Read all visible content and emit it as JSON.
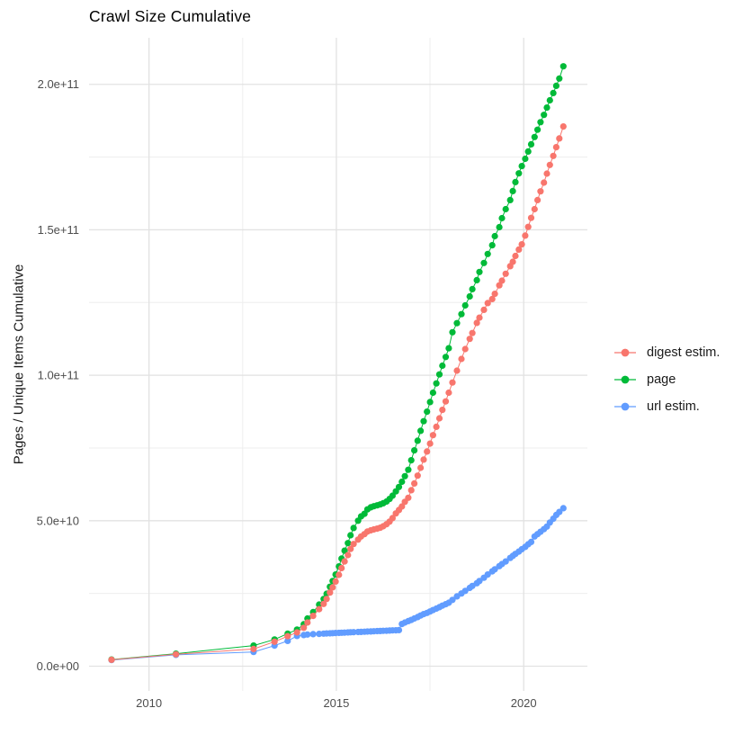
{
  "title": "Crawl Size Cumulative",
  "axes": {
    "y_label": "Pages / Unique Items Cumulative",
    "y_tick_labels": [
      "0.0e+00",
      "5.0e+10",
      "1.0e+11",
      "1.5e+11",
      "2.0e+11"
    ],
    "x_tick_labels": [
      "2010",
      "2015",
      "2020"
    ]
  },
  "legend": {
    "position": "right",
    "items": [
      {
        "label": "digest estim.",
        "color": "#F8766D"
      },
      {
        "label": "page",
        "color": "#00BA38"
      },
      {
        "label": "url estim.",
        "color": "#619CFF"
      }
    ]
  },
  "chart_data": {
    "type": "scatter",
    "title": "Crawl Size Cumulative",
    "xlabel": "",
    "ylabel": "Pages / Unique Items Cumulative",
    "grid": true,
    "legend_position": "right",
    "xlim": [
      2008.4,
      2021.7
    ],
    "ylim_e9": [
      -8.5,
      216
    ],
    "x_major_ticks": [
      {
        "label": "2010",
        "value": 2010
      },
      {
        "label": "2015",
        "value": 2015
      },
      {
        "label": "2020",
        "value": 2020
      }
    ],
    "x_minor_gridlines": [
      2012.5,
      2017.5
    ],
    "y_major_ticks": [
      {
        "label": "0.0e+00",
        "value_e9": 0
      },
      {
        "label": "5.0e+10",
        "value_e9": 50
      },
      {
        "label": "1.0e+11",
        "value_e9": 100
      },
      {
        "label": "1.5e+11",
        "value_e9": 150
      },
      {
        "label": "2.0e+11",
        "value_e9": 200
      }
    ],
    "y_minor_gridlines_e9": [
      25,
      75,
      125,
      175
    ],
    "y_unit": "1e9 (billions of pages / unique items)",
    "x_unit": "decimal year",
    "series": [
      {
        "name": "url estim.",
        "color": "#619CFF",
        "points": [
          [
            2009.0,
            2.1
          ],
          [
            2010.72,
            3.9
          ],
          [
            2012.79,
            4.9
          ],
          [
            2013.35,
            7.1
          ],
          [
            2013.7,
            8.7
          ],
          [
            2013.95,
            10.4
          ],
          [
            2014.13,
            10.7
          ],
          [
            2014.23,
            10.9
          ],
          [
            2014.38,
            11.0
          ],
          [
            2014.54,
            11.1
          ],
          [
            2014.66,
            11.2
          ],
          [
            2014.74,
            11.25
          ],
          [
            2014.83,
            11.3
          ],
          [
            2014.9,
            11.35
          ],
          [
            2014.98,
            11.4
          ],
          [
            2015.07,
            11.45
          ],
          [
            2015.14,
            11.5
          ],
          [
            2015.22,
            11.55
          ],
          [
            2015.31,
            11.6
          ],
          [
            2015.38,
            11.65
          ],
          [
            2015.46,
            11.7
          ],
          [
            2015.58,
            11.75
          ],
          [
            2015.66,
            11.8
          ],
          [
            2015.75,
            11.85
          ],
          [
            2015.83,
            11.9
          ],
          [
            2015.92,
            11.95
          ],
          [
            2016.0,
            12.0
          ],
          [
            2016.09,
            12.05
          ],
          [
            2016.17,
            12.1
          ],
          [
            2016.25,
            12.15
          ],
          [
            2016.34,
            12.2
          ],
          [
            2016.42,
            12.25
          ],
          [
            2016.5,
            12.3
          ],
          [
            2016.59,
            12.35
          ],
          [
            2016.67,
            12.4
          ],
          [
            2016.75,
            14.5
          ],
          [
            2016.83,
            15.0
          ],
          [
            2016.92,
            15.5
          ],
          [
            2017.0,
            15.9
          ],
          [
            2017.08,
            16.4
          ],
          [
            2017.17,
            16.9
          ],
          [
            2017.25,
            17.4
          ],
          [
            2017.33,
            17.9
          ],
          [
            2017.42,
            18.3
          ],
          [
            2017.5,
            18.8
          ],
          [
            2017.58,
            19.3
          ],
          [
            2017.67,
            19.8
          ],
          [
            2017.75,
            20.3
          ],
          [
            2017.83,
            20.8
          ],
          [
            2017.92,
            21.3
          ],
          [
            2018.0,
            21.8
          ],
          [
            2018.1,
            22.8
          ],
          [
            2018.22,
            24.0
          ],
          [
            2018.34,
            25.0
          ],
          [
            2018.44,
            25.9
          ],
          [
            2018.56,
            26.9
          ],
          [
            2018.63,
            27.6
          ],
          [
            2018.75,
            28.5
          ],
          [
            2018.82,
            29.3
          ],
          [
            2018.94,
            30.4
          ],
          [
            2019.04,
            31.5
          ],
          [
            2019.16,
            32.6
          ],
          [
            2019.23,
            33.3
          ],
          [
            2019.35,
            34.4
          ],
          [
            2019.42,
            35.1
          ],
          [
            2019.52,
            36.0
          ],
          [
            2019.64,
            37.2
          ],
          [
            2019.71,
            37.9
          ],
          [
            2019.78,
            38.6
          ],
          [
            2019.87,
            39.4
          ],
          [
            2019.95,
            40.2
          ],
          [
            2020.04,
            41.0
          ],
          [
            2020.12,
            41.9
          ],
          [
            2020.2,
            42.7
          ],
          [
            2020.29,
            44.6
          ],
          [
            2020.37,
            45.4
          ],
          [
            2020.45,
            46.2
          ],
          [
            2020.54,
            47.1
          ],
          [
            2020.62,
            48.0
          ],
          [
            2020.7,
            49.4
          ],
          [
            2020.79,
            50.7
          ],
          [
            2020.87,
            52.0
          ],
          [
            2020.95,
            53.0
          ],
          [
            2021.06,
            54.3
          ]
        ]
      },
      {
        "name": "page",
        "color": "#00BA38",
        "points": [
          [
            2009.0,
            2.3
          ],
          [
            2010.72,
            4.3
          ],
          [
            2012.79,
            7.1
          ],
          [
            2013.35,
            9.2
          ],
          [
            2013.7,
            11.2
          ],
          [
            2013.95,
            12.6
          ],
          [
            2014.13,
            14.4
          ],
          [
            2014.23,
            16.4
          ],
          [
            2014.38,
            18.6
          ],
          [
            2014.54,
            21.2
          ],
          [
            2014.66,
            23.1
          ],
          [
            2014.74,
            24.9
          ],
          [
            2014.83,
            27.3
          ],
          [
            2014.9,
            29.3
          ],
          [
            2014.98,
            31.5
          ],
          [
            2015.07,
            34.3
          ],
          [
            2015.14,
            37.0
          ],
          [
            2015.22,
            39.7
          ],
          [
            2015.31,
            42.3
          ],
          [
            2015.38,
            45.0
          ],
          [
            2015.46,
            47.5
          ],
          [
            2015.58,
            50.0
          ],
          [
            2015.66,
            51.5
          ],
          [
            2015.75,
            52.4
          ],
          [
            2015.83,
            53.9
          ],
          [
            2015.92,
            54.6
          ],
          [
            2016.0,
            55.0
          ],
          [
            2016.09,
            55.3
          ],
          [
            2016.17,
            55.6
          ],
          [
            2016.25,
            56.0
          ],
          [
            2016.34,
            56.6
          ],
          [
            2016.42,
            57.5
          ],
          [
            2016.5,
            58.6
          ],
          [
            2016.59,
            60.1
          ],
          [
            2016.67,
            61.6
          ],
          [
            2016.75,
            63.4
          ],
          [
            2016.83,
            65.3
          ],
          [
            2016.92,
            67.5
          ],
          [
            2017.0,
            70.8
          ],
          [
            2017.08,
            74.2
          ],
          [
            2017.17,
            77.5
          ],
          [
            2017.25,
            80.9
          ],
          [
            2017.33,
            84.2
          ],
          [
            2017.42,
            87.5
          ],
          [
            2017.5,
            90.8
          ],
          [
            2017.58,
            94.0
          ],
          [
            2017.67,
            97.2
          ],
          [
            2017.75,
            100.3
          ],
          [
            2017.83,
            103.3
          ],
          [
            2017.92,
            106.3
          ],
          [
            2018.0,
            109.3
          ],
          [
            2018.1,
            114.8
          ],
          [
            2018.22,
            117.9
          ],
          [
            2018.34,
            121.0
          ],
          [
            2018.44,
            124.0
          ],
          [
            2018.56,
            127.1
          ],
          [
            2018.63,
            129.6
          ],
          [
            2018.75,
            132.7
          ],
          [
            2018.82,
            135.5
          ],
          [
            2018.94,
            138.6
          ],
          [
            2019.04,
            141.7
          ],
          [
            2019.16,
            144.7
          ],
          [
            2019.23,
            147.8
          ],
          [
            2019.35,
            150.9
          ],
          [
            2019.42,
            154.0
          ],
          [
            2019.52,
            157.1
          ],
          [
            2019.64,
            160.2
          ],
          [
            2019.71,
            163.3
          ],
          [
            2019.78,
            166.4
          ],
          [
            2019.87,
            169.4
          ],
          [
            2019.95,
            171.9
          ],
          [
            2020.04,
            174.4
          ],
          [
            2020.12,
            176.9
          ],
          [
            2020.2,
            179.4
          ],
          [
            2020.29,
            181.9
          ],
          [
            2020.37,
            184.4
          ],
          [
            2020.45,
            187.0
          ],
          [
            2020.54,
            189.5
          ],
          [
            2020.62,
            192.0
          ],
          [
            2020.7,
            194.5
          ],
          [
            2020.79,
            197.0
          ],
          [
            2020.87,
            199.5
          ],
          [
            2020.95,
            202.0
          ],
          [
            2021.06,
            206.2
          ]
        ]
      },
      {
        "name": "digest estim.",
        "color": "#F8766D",
        "points": [
          [
            2009.0,
            2.2
          ],
          [
            2010.72,
            4.1
          ],
          [
            2012.79,
            5.9
          ],
          [
            2013.35,
            8.4
          ],
          [
            2013.7,
            10.3
          ],
          [
            2013.95,
            11.6
          ],
          [
            2014.13,
            13.2
          ],
          [
            2014.23,
            15.0
          ],
          [
            2014.38,
            17.3
          ],
          [
            2014.54,
            19.6
          ],
          [
            2014.66,
            21.4
          ],
          [
            2014.74,
            23.1
          ],
          [
            2014.83,
            25.3
          ],
          [
            2014.9,
            27.1
          ],
          [
            2014.98,
            29.1
          ],
          [
            2015.07,
            31.4
          ],
          [
            2015.14,
            33.7
          ],
          [
            2015.22,
            36.0
          ],
          [
            2015.31,
            38.2
          ],
          [
            2015.38,
            40.3
          ],
          [
            2015.46,
            42.0
          ],
          [
            2015.58,
            43.5
          ],
          [
            2015.66,
            44.6
          ],
          [
            2015.75,
            45.4
          ],
          [
            2015.83,
            46.3
          ],
          [
            2015.92,
            46.7
          ],
          [
            2016.0,
            47.0
          ],
          [
            2016.09,
            47.3
          ],
          [
            2016.17,
            47.6
          ],
          [
            2016.25,
            48.1
          ],
          [
            2016.34,
            48.8
          ],
          [
            2016.42,
            49.7
          ],
          [
            2016.5,
            50.9
          ],
          [
            2016.59,
            52.5
          ],
          [
            2016.67,
            53.7
          ],
          [
            2016.75,
            54.9
          ],
          [
            2016.83,
            56.5
          ],
          [
            2016.92,
            57.9
          ],
          [
            2017.0,
            60.5
          ],
          [
            2017.08,
            62.8
          ],
          [
            2017.17,
            65.5
          ],
          [
            2017.25,
            68.2
          ],
          [
            2017.33,
            71.0
          ],
          [
            2017.42,
            73.8
          ],
          [
            2017.5,
            76.5
          ],
          [
            2017.58,
            79.4
          ],
          [
            2017.67,
            82.3
          ],
          [
            2017.75,
            85.2
          ],
          [
            2017.83,
            88.1
          ],
          [
            2017.92,
            91.0
          ],
          [
            2018.0,
            94.0
          ],
          [
            2018.1,
            97.5
          ],
          [
            2018.22,
            101.6
          ],
          [
            2018.34,
            105.6
          ],
          [
            2018.44,
            109.0
          ],
          [
            2018.56,
            112.5
          ],
          [
            2018.63,
            114.5
          ],
          [
            2018.75,
            118.0
          ],
          [
            2018.82,
            119.8
          ],
          [
            2018.94,
            122.5
          ],
          [
            2019.04,
            124.8
          ],
          [
            2019.16,
            126.2
          ],
          [
            2019.23,
            128.0
          ],
          [
            2019.35,
            130.9
          ],
          [
            2019.42,
            132.5
          ],
          [
            2019.52,
            134.9
          ],
          [
            2019.64,
            137.5
          ],
          [
            2019.71,
            139.0
          ],
          [
            2019.78,
            141.0
          ],
          [
            2019.87,
            143.2
          ],
          [
            2019.95,
            145.0
          ],
          [
            2020.04,
            148.0
          ],
          [
            2020.12,
            151.0
          ],
          [
            2020.2,
            154.1
          ],
          [
            2020.29,
            157.1
          ],
          [
            2020.37,
            160.2
          ],
          [
            2020.45,
            163.2
          ],
          [
            2020.54,
            166.2
          ],
          [
            2020.62,
            169.3
          ],
          [
            2020.7,
            172.3
          ],
          [
            2020.79,
            175.4
          ],
          [
            2020.87,
            178.4
          ],
          [
            2020.95,
            181.4
          ],
          [
            2021.06,
            185.5
          ]
        ]
      }
    ]
  },
  "style": {
    "background": "#ffffff",
    "grid_major_color": "#e2e2e2",
    "grid_minor_color": "#eeeeee",
    "tick_label_color": "#4d4d4d",
    "title_color": "#000000",
    "point_radius": 3.6
  }
}
